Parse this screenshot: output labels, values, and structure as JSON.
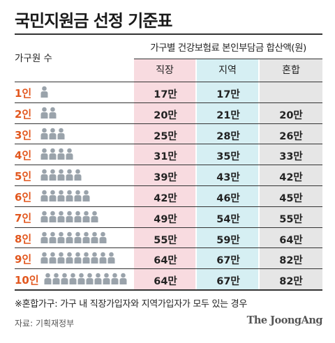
{
  "title": "국민지원금 선정 기준표",
  "header": {
    "left": "가구원 수",
    "main": "가구별 건강보험료 본인부담금 합산액(원)",
    "columns": [
      "직장",
      "지역",
      "혼합"
    ]
  },
  "colors": {
    "col1_bg": "#f8dbe0",
    "col2_bg": "#d6eff3",
    "col3_bg": "#e6e6e6",
    "label": "#e2571e",
    "person": "#9aa3ab"
  },
  "rows": [
    {
      "label": "1인",
      "people": 1,
      "values": [
        "17만",
        "17만",
        ""
      ]
    },
    {
      "label": "2인",
      "people": 2,
      "values": [
        "20만",
        "21만",
        "20만"
      ]
    },
    {
      "label": "3인",
      "people": 3,
      "values": [
        "25만",
        "28만",
        "26만"
      ]
    },
    {
      "label": "4인",
      "people": 4,
      "values": [
        "31만",
        "35만",
        "33만"
      ]
    },
    {
      "label": "5인",
      "people": 5,
      "values": [
        "39만",
        "43만",
        "42만"
      ]
    },
    {
      "label": "6인",
      "people": 6,
      "values": [
        "42만",
        "46만",
        "45만"
      ]
    },
    {
      "label": "7인",
      "people": 7,
      "values": [
        "49만",
        "54만",
        "55만"
      ]
    },
    {
      "label": "8인",
      "people": 8,
      "values": [
        "55만",
        "59만",
        "64만"
      ]
    },
    {
      "label": "9인",
      "people": 9,
      "values": [
        "64만",
        "67만",
        "82만"
      ]
    },
    {
      "label": "10인",
      "people": 10,
      "values": [
        "64만",
        "67만",
        "82만"
      ]
    }
  ],
  "footnote": "※혼합가구: 가구 내 직장가입자와 지역가입자가 모두 있는 경우",
  "source": "자료: 기획재정부",
  "brand": "The JoongAng"
}
